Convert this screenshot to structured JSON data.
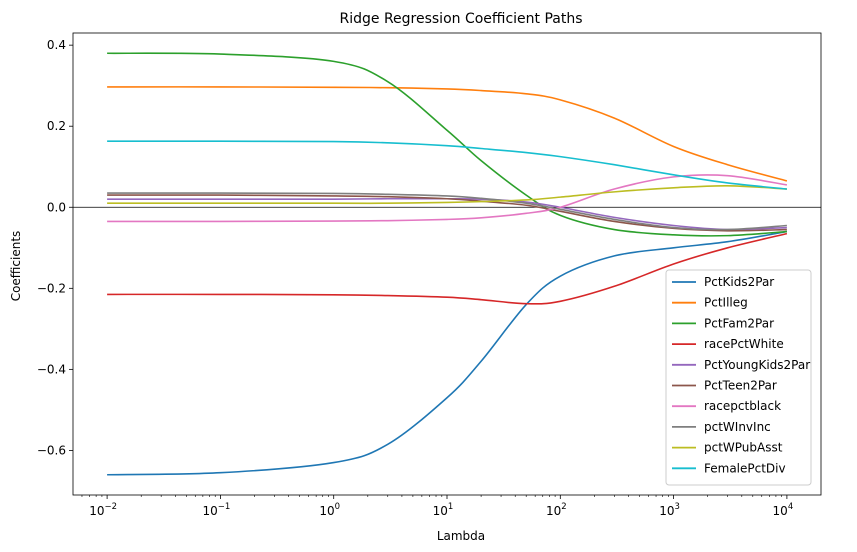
{
  "chart_data": {
    "type": "line",
    "title": "Ridge Regression Coefficient Paths",
    "xlabel": "Lambda",
    "ylabel": "Coefficients",
    "xscale": "log",
    "xlim": [
      0.005,
      20000
    ],
    "ylim": [
      -0.71,
      0.43
    ],
    "x_ticks": [
      {
        "value": 0.01,
        "base": "10",
        "exp": "−2"
      },
      {
        "value": 0.1,
        "base": "10",
        "exp": "−1"
      },
      {
        "value": 1,
        "base": "10",
        "exp": "0"
      },
      {
        "value": 10,
        "base": "10",
        "exp": "1"
      },
      {
        "value": 100,
        "base": "10",
        "exp": "2"
      },
      {
        "value": 1000,
        "base": "10",
        "exp": "3"
      },
      {
        "value": 10000,
        "base": "10",
        "exp": "4"
      }
    ],
    "y_ticks": [
      {
        "value": 0.4,
        "label": "0.4"
      },
      {
        "value": 0.2,
        "label": "0.2"
      },
      {
        "value": 0.0,
        "label": "0.0"
      },
      {
        "value": -0.2,
        "label": "−0.2"
      },
      {
        "value": -0.4,
        "label": "−0.4"
      },
      {
        "value": -0.6,
        "label": "−0.6"
      }
    ],
    "zero_line": true,
    "grid": false,
    "legend_position": "lower-right",
    "x": [
      0.01,
      0.1,
      1,
      3,
      10,
      20,
      50,
      100,
      300,
      1000,
      3000,
      10000
    ],
    "series": [
      {
        "name": "PctKids2Par",
        "color": "#1f77b4",
        "values": [
          -0.66,
          -0.655,
          -0.63,
          -0.585,
          -0.47,
          -0.38,
          -0.24,
          -0.17,
          -0.12,
          -0.1,
          -0.085,
          -0.06
        ]
      },
      {
        "name": "PctIlleg",
        "color": "#ff7f0e",
        "values": [
          0.297,
          0.297,
          0.296,
          0.295,
          0.292,
          0.288,
          0.28,
          0.265,
          0.22,
          0.15,
          0.105,
          0.065
        ]
      },
      {
        "name": "PctFam2Par",
        "color": "#2ca02c",
        "values": [
          0.38,
          0.378,
          0.36,
          0.31,
          0.19,
          0.115,
          0.03,
          -0.02,
          -0.055,
          -0.068,
          -0.07,
          -0.06
        ]
      },
      {
        "name": "racePctWhite",
        "color": "#d62728",
        "values": [
          -0.215,
          -0.215,
          -0.216,
          -0.218,
          -0.222,
          -0.228,
          -0.238,
          -0.232,
          -0.195,
          -0.14,
          -0.1,
          -0.065
        ]
      },
      {
        "name": "PctYoungKids2Par",
        "color": "#9467bd",
        "values": [
          0.02,
          0.02,
          0.02,
          0.021,
          0.021,
          0.02,
          0.013,
          0.0,
          -0.025,
          -0.045,
          -0.055,
          -0.05
        ]
      },
      {
        "name": "PctTeen2Par",
        "color": "#8c564b",
        "values": [
          0.03,
          0.03,
          0.028,
          0.026,
          0.021,
          0.015,
          0.005,
          -0.01,
          -0.035,
          -0.052,
          -0.058,
          -0.055
        ]
      },
      {
        "name": "racepctblack",
        "color": "#e377c2",
        "values": [
          -0.035,
          -0.035,
          -0.034,
          -0.033,
          -0.03,
          -0.026,
          -0.015,
          0.0,
          0.045,
          0.075,
          0.078,
          0.055
        ]
      },
      {
        "name": "pctWInvInc",
        "color": "#7f7f7f",
        "values": [
          0.035,
          0.035,
          0.034,
          0.032,
          0.028,
          0.022,
          0.01,
          -0.005,
          -0.03,
          -0.05,
          -0.055,
          -0.045
        ]
      },
      {
        "name": "pctWPubAsst",
        "color": "#bcbd22",
        "values": [
          0.01,
          0.01,
          0.01,
          0.01,
          0.012,
          0.014,
          0.018,
          0.025,
          0.038,
          0.048,
          0.053,
          0.045
        ]
      },
      {
        "name": "FemalePctDiv",
        "color": "#17becf",
        "values": [
          0.163,
          0.163,
          0.162,
          0.159,
          0.152,
          0.145,
          0.135,
          0.125,
          0.105,
          0.08,
          0.06,
          0.045
        ]
      }
    ]
  }
}
